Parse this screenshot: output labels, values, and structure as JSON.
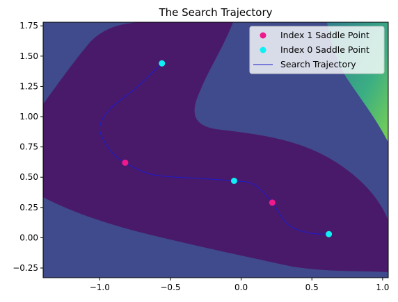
{
  "chart_data": {
    "type": "scatter",
    "title": "The Search Trajectory",
    "xlabel": "",
    "ylabel": "",
    "xlim": [
      -1.4,
      1.04
    ],
    "ylim": [
      -0.33,
      1.78
    ],
    "x_ticks": [
      -1.0,
      -0.5,
      0.0,
      0.5,
      1.0
    ],
    "x_tick_labels": [
      "−1.0",
      "−0.5",
      "0.0",
      "0.5",
      "1.0"
    ],
    "y_ticks": [
      -0.25,
      0.0,
      0.25,
      0.5,
      0.75,
      1.0,
      1.25,
      1.5,
      1.75
    ],
    "y_tick_labels": [
      "−0.25",
      "0.00",
      "0.25",
      "0.50",
      "0.75",
      "1.00",
      "1.25",
      "1.50",
      "1.75"
    ],
    "grid": false,
    "legend_position": "upper-right",
    "background": "filled contour plot of a potential energy surface",
    "colors": {
      "index1": "#f0198c",
      "index0": "#0ff0f5",
      "trajectory": "#1a1acc",
      "contour_low": "#4a1a6a",
      "contour_mid": "#3f4b8c",
      "contour_mid2": "#2f7f8e",
      "contour_high": "#7ad151"
    },
    "series": [
      {
        "name": "Index 1 Saddle Point",
        "kind": "scatter",
        "color": "#f0198c",
        "points": [
          {
            "x": -0.82,
            "y": 0.62
          },
          {
            "x": 0.22,
            "y": 0.29
          }
        ]
      },
      {
        "name": "Index 0 Saddle Point",
        "kind": "scatter",
        "color": "#0ff0f5",
        "points": [
          {
            "x": -0.56,
            "y": 1.44
          },
          {
            "x": -0.05,
            "y": 0.47
          },
          {
            "x": 0.62,
            "y": 0.03
          }
        ]
      },
      {
        "name": "Search Trajectory",
        "kind": "line",
        "color": "#1a1acc",
        "points": [
          {
            "x": -0.56,
            "y": 1.44
          },
          {
            "x": -0.75,
            "y": 1.23
          },
          {
            "x": -0.93,
            "y": 1.06
          },
          {
            "x": -1.0,
            "y": 0.9
          },
          {
            "x": -0.93,
            "y": 0.73
          },
          {
            "x": -0.82,
            "y": 0.62
          },
          {
            "x": -0.62,
            "y": 0.52
          },
          {
            "x": -0.3,
            "y": 0.49
          },
          {
            "x": -0.05,
            "y": 0.47
          },
          {
            "x": 0.09,
            "y": 0.44
          },
          {
            "x": 0.22,
            "y": 0.29
          },
          {
            "x": 0.33,
            "y": 0.11
          },
          {
            "x": 0.48,
            "y": 0.04
          },
          {
            "x": 0.62,
            "y": 0.03
          }
        ]
      }
    ]
  }
}
